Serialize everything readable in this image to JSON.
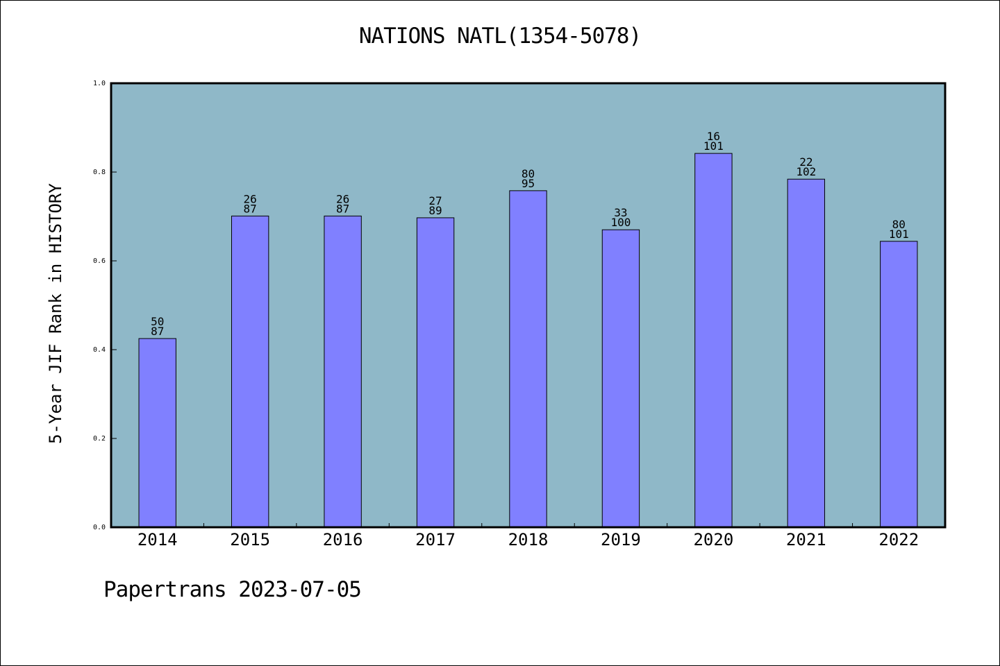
{
  "chart_data": {
    "type": "bar",
    "title": "NATIONS NATL(1354-5078)",
    "xlabel": "",
    "ylabel": "5-Year JIF Rank in HISTORY",
    "categories": [
      "2014",
      "2015",
      "2016",
      "2017",
      "2018",
      "2019",
      "2020",
      "2021",
      "2022"
    ],
    "values": [
      0.425,
      0.701,
      0.701,
      0.697,
      0.758,
      0.67,
      0.842,
      0.784,
      0.644
    ],
    "labels_top": [
      "50",
      "26",
      "26",
      "27",
      "80",
      "33",
      "16",
      "22",
      "80"
    ],
    "labels_bottom": [
      "87",
      "87",
      "87",
      "89",
      "95",
      "100",
      "101",
      "102",
      "101"
    ],
    "ylim": [
      0,
      1.0
    ],
    "yticks": [
      "0.0",
      "0.2",
      "0.4",
      "0.6",
      "0.8",
      "1.0"
    ],
    "grid": false,
    "legend": "none",
    "colors": {
      "plot_bg": "#8fb8c8",
      "bar": "#8080ff",
      "bar_edge": "#000000"
    }
  },
  "footer": "Papertrans 2023-07-05"
}
